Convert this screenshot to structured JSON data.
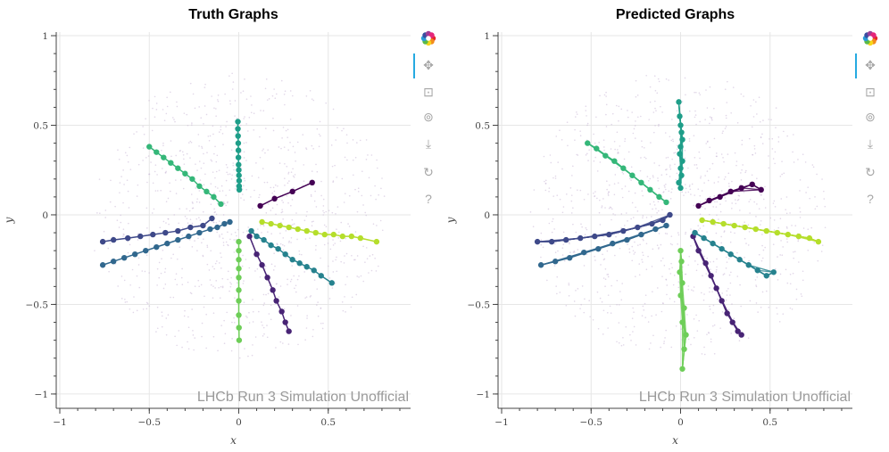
{
  "chart_data": [
    {
      "type": "scatter",
      "title": "Truth Graphs",
      "xlabel": "x",
      "ylabel": "y",
      "xlim": [
        -1.02,
        0.96
      ],
      "ylim": [
        -1.08,
        1.02
      ],
      "xticks": [
        -1,
        -0.5,
        0,
        0.5
      ],
      "xtick_labels": [
        "−1",
        "−0.5",
        "0",
        "0.5"
      ],
      "yticks": [
        -1,
        -0.5,
        0,
        0.5,
        1
      ],
      "ytick_labels": [
        "−1",
        "−0.5",
        "0",
        "0.5",
        "1"
      ],
      "grid": true,
      "watermark": "LHCb Run 3 Simulation Unofficial",
      "background_hits": "faint purple unassigned hits spread around the origin",
      "series": [
        {
          "name": "track-purple-upper-right",
          "color": "#440154",
          "x": [
            0.12,
            0.2,
            0.3,
            0.41
          ],
          "y": [
            0.05,
            0.09,
            0.13,
            0.18
          ]
        },
        {
          "name": "track-purple-lower",
          "color": "#482475",
          "x": [
            0.06,
            0.1,
            0.13,
            0.16,
            0.19,
            0.21,
            0.24,
            0.26,
            0.28
          ],
          "y": [
            -0.12,
            -0.22,
            -0.28,
            -0.35,
            -0.42,
            -0.48,
            -0.54,
            -0.6,
            -0.65
          ]
        },
        {
          "name": "track-indigo-left-upper",
          "color": "#3e4989",
          "x": [
            -0.76,
            -0.7,
            -0.62,
            -0.55,
            -0.48,
            -0.41,
            -0.34,
            -0.27,
            -0.2,
            -0.15
          ],
          "y": [
            -0.15,
            -0.14,
            -0.13,
            -0.12,
            -0.11,
            -0.1,
            -0.09,
            -0.07,
            -0.06,
            -0.02
          ]
        },
        {
          "name": "track-blue-left-lower",
          "color": "#31688e",
          "x": [
            -0.76,
            -0.7,
            -0.64,
            -0.58,
            -0.52,
            -0.46,
            -0.4,
            -0.34,
            -0.28,
            -0.22,
            -0.16,
            -0.12,
            -0.08,
            -0.05
          ],
          "y": [
            -0.28,
            -0.26,
            -0.24,
            -0.22,
            -0.2,
            -0.18,
            -0.16,
            -0.14,
            -0.12,
            -0.1,
            -0.08,
            -0.07,
            -0.05,
            -0.04
          ]
        },
        {
          "name": "track-teal-blue-lower-right",
          "color": "#26828e",
          "x": [
            0.07,
            0.1,
            0.14,
            0.18,
            0.22,
            0.26,
            0.3,
            0.34,
            0.38,
            0.42,
            0.46,
            0.52
          ],
          "y": [
            -0.09,
            -0.12,
            -0.14,
            -0.17,
            -0.19,
            -0.22,
            -0.25,
            -0.27,
            -0.29,
            -0.31,
            -0.34,
            -0.38
          ]
        },
        {
          "name": "track-teal-up",
          "color": "#1f9e89",
          "x": [
            -0.005,
            -0.005,
            -0.004,
            -0.003,
            -0.002,
            -0.002,
            -0.001,
            0,
            0.001,
            0.002,
            0.002,
            0.003
          ],
          "y": [
            0.52,
            0.48,
            0.44,
            0.4,
            0.36,
            0.32,
            0.28,
            0.25,
            0.22,
            0.19,
            0.16,
            0.14
          ]
        },
        {
          "name": "track-green-left-up",
          "color": "#35b779",
          "x": [
            -0.5,
            -0.46,
            -0.42,
            -0.38,
            -0.34,
            -0.3,
            -0.26,
            -0.22,
            -0.18,
            -0.14,
            -0.1
          ],
          "y": [
            0.38,
            0.35,
            0.32,
            0.29,
            0.26,
            0.23,
            0.2,
            0.16,
            0.13,
            0.1,
            0.06
          ]
        },
        {
          "name": "track-lime-green-down",
          "color": "#6ece58",
          "x": [
            0,
            0,
            0,
            0,
            0,
            0,
            0,
            0,
            0.001,
            0.002
          ],
          "y": [
            -0.15,
            -0.2,
            -0.25,
            -0.3,
            -0.35,
            -0.42,
            -0.48,
            -0.56,
            -0.63,
            -0.7
          ]
        },
        {
          "name": "track-yellow-green-right",
          "color": "#b5de2b",
          "x": [
            0.13,
            0.18,
            0.23,
            0.28,
            0.33,
            0.38,
            0.43,
            0.48,
            0.53,
            0.58,
            0.63,
            0.68,
            0.77
          ],
          "y": [
            -0.04,
            -0.05,
            -0.06,
            -0.07,
            -0.08,
            -0.09,
            -0.1,
            -0.11,
            -0.11,
            -0.12,
            -0.12,
            -0.13,
            -0.15
          ]
        }
      ]
    },
    {
      "type": "scatter",
      "title": "Predicted Graphs",
      "xlabel": "x",
      "ylabel": "y",
      "xlim": [
        -1.02,
        0.96
      ],
      "ylim": [
        -1.08,
        1.02
      ],
      "xticks": [
        -1,
        -0.5,
        0,
        0.5
      ],
      "xtick_labels": [
        "−1",
        "−0.5",
        "0",
        "0.5"
      ],
      "yticks": [
        -1,
        -0.5,
        0,
        0.5,
        1
      ],
      "ytick_labels": [
        "−1",
        "−0.5",
        "0",
        "0.5",
        "1"
      ],
      "grid": true,
      "watermark": "LHCb Run 3 Simulation Unofficial",
      "background_hits": "faint purple unassigned hits spread around the origin",
      "series": [
        {
          "name": "pred-purple-upper-right",
          "color": "#440154",
          "x": [
            0.1,
            0.16,
            0.22,
            0.28,
            0.34,
            0.4,
            0.45
          ],
          "y": [
            0.05,
            0.08,
            0.1,
            0.13,
            0.15,
            0.17,
            0.14
          ]
        },
        {
          "name": "pred-purple-lower",
          "color": "#482475",
          "x": [
            0.07,
            0.1,
            0.14,
            0.17,
            0.2,
            0.23,
            0.26,
            0.29,
            0.32,
            0.34
          ],
          "y": [
            -0.12,
            -0.2,
            -0.27,
            -0.34,
            -0.41,
            -0.48,
            -0.55,
            -0.6,
            -0.65,
            -0.67
          ]
        },
        {
          "name": "pred-indigo-left",
          "color": "#3e4989",
          "x": [
            -0.8,
            -0.72,
            -0.64,
            -0.56,
            -0.48,
            -0.4,
            -0.32,
            -0.24,
            -0.16,
            -0.1,
            -0.06
          ],
          "y": [
            -0.15,
            -0.15,
            -0.14,
            -0.13,
            -0.12,
            -0.11,
            -0.09,
            -0.07,
            -0.05,
            -0.03,
            0.0
          ]
        },
        {
          "name": "pred-blue-left-lower",
          "color": "#31688e",
          "x": [
            -0.78,
            -0.7,
            -0.62,
            -0.54,
            -0.46,
            -0.38,
            -0.3,
            -0.22,
            -0.14,
            -0.08
          ],
          "y": [
            -0.28,
            -0.26,
            -0.24,
            -0.21,
            -0.19,
            -0.16,
            -0.14,
            -0.11,
            -0.08,
            -0.06
          ]
        },
        {
          "name": "pred-teal-blue-lower-right",
          "color": "#26828e",
          "x": [
            0.08,
            0.13,
            0.18,
            0.23,
            0.28,
            0.33,
            0.38,
            0.43,
            0.48,
            0.52
          ],
          "y": [
            -0.1,
            -0.13,
            -0.16,
            -0.19,
            -0.22,
            -0.25,
            -0.28,
            -0.31,
            -0.34,
            -0.32
          ]
        },
        {
          "name": "pred-teal-up",
          "color": "#1f9e89",
          "x": [
            -0.01,
            -0.005,
            0,
            0.005,
            0.01,
            0.0,
            -0.005,
            0.01,
            0.0,
            0.005,
            -0.01,
            0.0
          ],
          "y": [
            0.63,
            0.55,
            0.5,
            0.46,
            0.42,
            0.38,
            0.34,
            0.3,
            0.26,
            0.22,
            0.18,
            0.15
          ]
        },
        {
          "name": "pred-green-left-up",
          "color": "#35b779",
          "x": [
            -0.52,
            -0.47,
            -0.42,
            -0.37,
            -0.32,
            -0.27,
            -0.22,
            -0.17,
            -0.12,
            -0.08
          ],
          "y": [
            0.4,
            0.37,
            0.33,
            0.3,
            0.26,
            0.22,
            0.18,
            0.14,
            0.1,
            0.07
          ]
        },
        {
          "name": "pred-lime-green-down",
          "color": "#6ece58",
          "x": [
            0.0,
            0.005,
            -0.005,
            0.01,
            0.0,
            0.02,
            0.01,
            0.03,
            0.02,
            0.01
          ],
          "y": [
            -0.2,
            -0.26,
            -0.32,
            -0.38,
            -0.45,
            -0.52,
            -0.6,
            -0.67,
            -0.75,
            -0.86
          ]
        },
        {
          "name": "pred-yellow-green-right",
          "color": "#b5de2b",
          "x": [
            0.12,
            0.18,
            0.24,
            0.3,
            0.36,
            0.42,
            0.48,
            0.54,
            0.6,
            0.66,
            0.72,
            0.77
          ],
          "y": [
            -0.03,
            -0.04,
            -0.05,
            -0.06,
            -0.07,
            -0.08,
            -0.09,
            -0.1,
            -0.11,
            -0.12,
            -0.13,
            -0.15
          ]
        }
      ]
    }
  ],
  "toolbar": [
    {
      "name": "bokeh-logo-icon",
      "glyph": "✿"
    },
    {
      "name": "pan-icon",
      "glyph": "✥"
    },
    {
      "name": "box-zoom-icon",
      "glyph": "⊡"
    },
    {
      "name": "wheel-zoom-icon",
      "glyph": "⊚"
    },
    {
      "name": "save-icon",
      "glyph": "⤓"
    },
    {
      "name": "reset-icon",
      "glyph": "↻"
    },
    {
      "name": "help-icon",
      "glyph": "?"
    }
  ]
}
